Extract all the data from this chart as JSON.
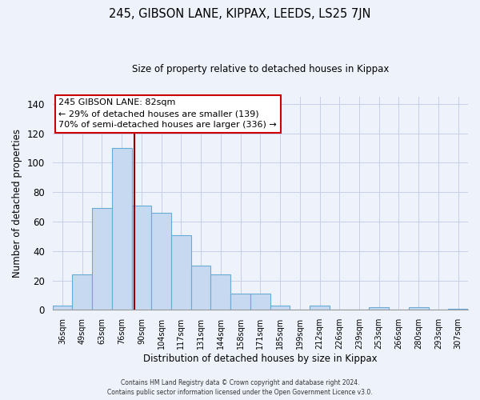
{
  "title": "245, GIBSON LANE, KIPPAX, LEEDS, LS25 7JN",
  "subtitle": "Size of property relative to detached houses in Kippax",
  "xlabel": "Distribution of detached houses by size in Kippax",
  "ylabel": "Number of detached properties",
  "bar_labels": [
    "36sqm",
    "49sqm",
    "63sqm",
    "76sqm",
    "90sqm",
    "104sqm",
    "117sqm",
    "131sqm",
    "144sqm",
    "158sqm",
    "171sqm",
    "185sqm",
    "199sqm",
    "212sqm",
    "226sqm",
    "239sqm",
    "253sqm",
    "266sqm",
    "280sqm",
    "293sqm",
    "307sqm"
  ],
  "bar_values": [
    3,
    24,
    69,
    110,
    71,
    66,
    51,
    30,
    24,
    11,
    11,
    3,
    0,
    3,
    0,
    0,
    2,
    0,
    2,
    0,
    1
  ],
  "bar_color": "#c6d9f0",
  "bar_edge_color": "#6aaad4",
  "ylim": [
    0,
    145
  ],
  "yticks": [
    0,
    20,
    40,
    60,
    80,
    100,
    120,
    140
  ],
  "vline_x": 3.62,
  "vline_color": "#990000",
  "annotation_lines": [
    "245 GIBSON LANE: 82sqm",
    "← 29% of detached houses are smaller (139)",
    "70% of semi-detached houses are larger (336) →"
  ],
  "footer_line1": "Contains HM Land Registry data © Crown copyright and database right 2024.",
  "footer_line2": "Contains public sector information licensed under the Open Government Licence v3.0.",
  "background_color": "#eef2fa",
  "grid_color": "#c8d0e8"
}
